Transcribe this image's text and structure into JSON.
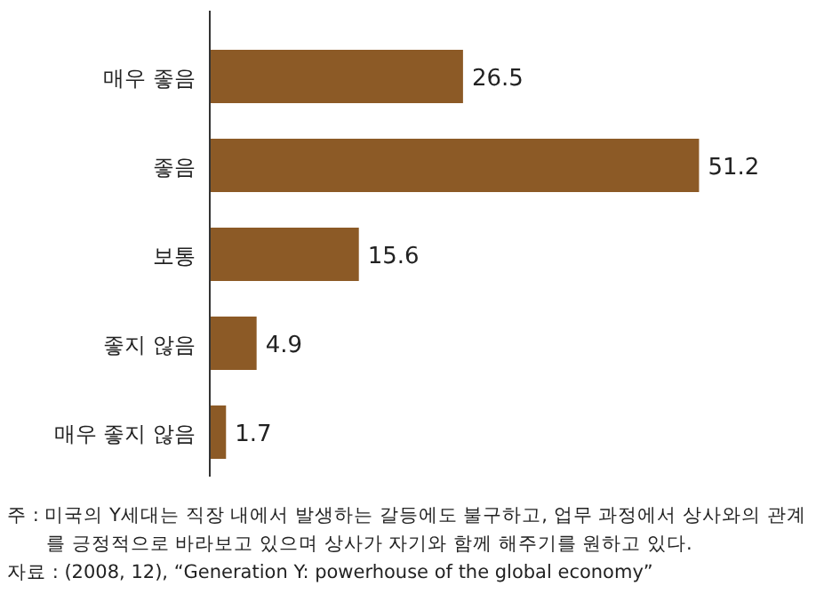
{
  "chart_data": {
    "type": "bar",
    "orientation": "horizontal",
    "categories": [
      "매우 좋음",
      "좋음",
      "보통",
      "좋지 않음",
      "매우 좋지 않음"
    ],
    "values": [
      26.5,
      51.2,
      15.6,
      4.9,
      1.7
    ],
    "color": "#8c5a26",
    "data_labels": true,
    "annotations": [
      "주 : 미국의 Y세대는 직장 내에서 발생하는 갈등에도 불구하고, 업무 과정에서 상사와의 관계를 긍정적으로 바라보고 있으며 상사가 자기와 함께 해주기를 원하고 있다.",
      "자료 : (2008, 12), “Generation Y: powerhouse of the global economy”"
    ]
  }
}
